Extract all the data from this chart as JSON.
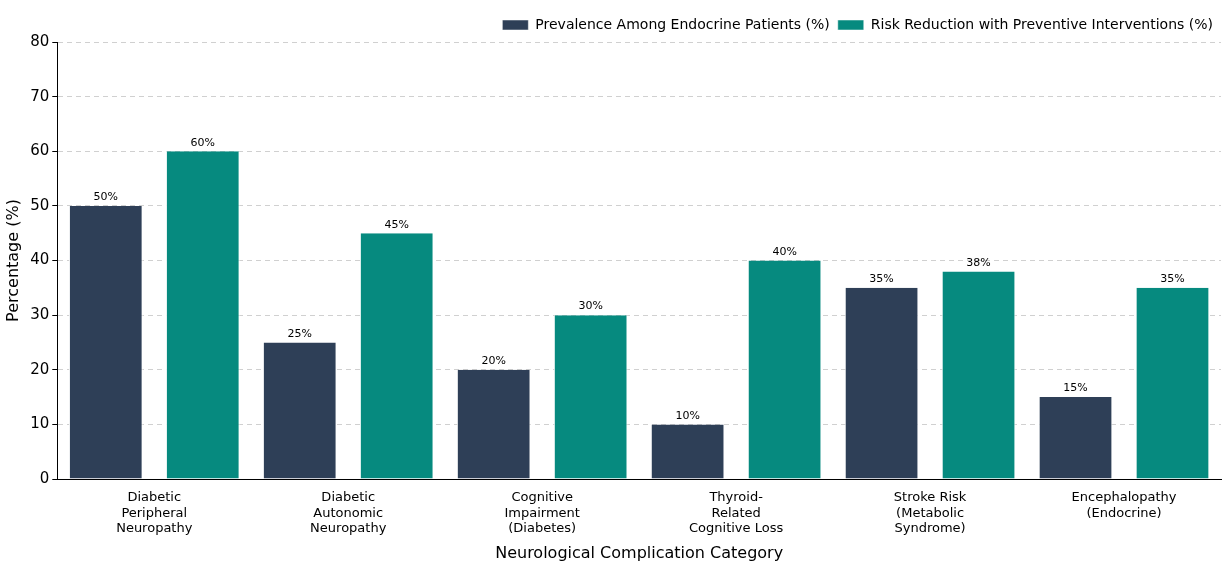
{
  "chart_data": {
    "type": "bar",
    "xlabel": "Neurological Complication Category",
    "ylabel": "Percentage (%)",
    "categories": [
      "Diabetic\nPeripheral\nNeuropathy",
      "Diabetic\nAutonomic\nNeuropathy",
      "Cognitive\nImpairment\n(Diabetes)",
      "Thyroid-\nRelated\nCognitive Loss",
      "Stroke Risk\n(Metabolic\nSyndrome)",
      "Encephalopathy\n(Endocrine)"
    ],
    "series": [
      {
        "name": "Prevalence Among Endocrine Patients (%)",
        "color": "#2e3f57",
        "values": [
          50,
          25,
          20,
          10,
          35,
          15
        ],
        "value_labels": [
          "50%",
          "25%",
          "20%",
          "10%",
          "35%",
          "15%"
        ]
      },
      {
        "name": "Risk Reduction with Preventive Interventions (%)",
        "color": "#068a7f",
        "values": [
          60,
          45,
          30,
          40,
          38,
          35
        ],
        "value_labels": [
          "60%",
          "45%",
          "30%",
          "40%",
          "38%",
          "35%"
        ]
      }
    ],
    "ylim": [
      0,
      80
    ],
    "yticks": [
      0,
      10,
      20,
      30,
      40,
      50,
      60,
      70,
      80
    ],
    "grid": "y",
    "legend": "top right"
  }
}
